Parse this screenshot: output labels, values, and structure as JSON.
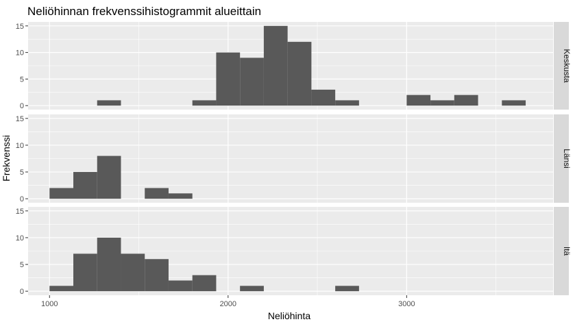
{
  "chart_data": {
    "type": "histogram-facets",
    "title": "Neliöhinnan frekvenssihistogrammit alueittain",
    "xlabel": "Neliöhinta",
    "ylabel": "Frekvenssi",
    "xlim": [
      880,
      3820
    ],
    "ylim": [
      -0.75,
      15.75
    ],
    "x_ticks": [
      1000,
      2000,
      3000
    ],
    "y_ticks": [
      0,
      5,
      10,
      15
    ],
    "bin_width": 133.33,
    "bins_start": [
      1000,
      1133.33,
      1266.67,
      1400,
      1533.33,
      1666.67,
      1800,
      1933.33,
      2066.67,
      2200,
      2333.33,
      2466.67,
      2600,
      2733.33,
      2866.67,
      3000,
      3133.33,
      3266.67,
      3400,
      3533.33
    ],
    "grid": true,
    "colors": {
      "bar": "#595959",
      "panel": "#ebebeb",
      "grid": "#ffffff",
      "strip": "#d9d9d9"
    },
    "facets": [
      {
        "label": "Keskusta",
        "counts": [
          0,
          0,
          1,
          0,
          0,
          0,
          1,
          10,
          9,
          15,
          12,
          3,
          1,
          0,
          0,
          2,
          1,
          2,
          0,
          1
        ]
      },
      {
        "label": "Länsi",
        "counts": [
          2,
          5,
          8,
          0,
          2,
          1,
          0,
          0,
          0,
          0,
          0,
          0,
          0,
          0,
          0,
          0,
          0,
          0,
          0,
          0
        ]
      },
      {
        "label": "Itä",
        "counts": [
          1,
          7,
          10,
          7,
          6,
          2,
          3,
          0,
          1,
          0,
          0,
          0,
          1,
          0,
          0,
          0,
          0,
          0,
          0,
          0
        ]
      }
    ]
  }
}
